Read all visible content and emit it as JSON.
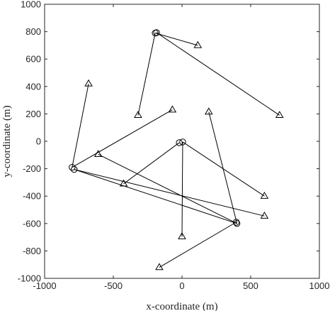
{
  "chart_data": {
    "type": "scatter",
    "xlabel": "x-coordinate (m)",
    "ylabel": "y-coordinate (m)",
    "xlim": [
      -1000,
      1000
    ],
    "ylim": [
      -1000,
      1000
    ],
    "xticks": [
      "-1000",
      "-500",
      "0",
      "500",
      "1000"
    ],
    "yticks": [
      "-1000",
      "-800",
      "-600",
      "-400",
      "-200",
      "0",
      "200",
      "400",
      "600",
      "800",
      "1000"
    ],
    "grid": false,
    "series": [
      {
        "marker": "circle",
        "points": [
          [
            -195,
            790
          ],
          [
            -185,
            793
          ],
          [
            -800,
            -190
          ],
          [
            -785,
            -205
          ],
          [
            -20,
            -10
          ],
          [
            5,
            -5
          ],
          [
            395,
            -590
          ],
          [
            400,
            -600
          ]
        ]
      },
      {
        "marker": "triangle",
        "points": [
          [
            115,
            700
          ],
          [
            -320,
            190
          ],
          [
            710,
            190
          ],
          [
            -680,
            420
          ],
          [
            -70,
            230
          ],
          [
            -610,
            -95
          ],
          [
            -425,
            -310
          ],
          [
            195,
            215
          ],
          [
            600,
            -400
          ],
          [
            600,
            -545
          ],
          [
            0,
            -695
          ],
          [
            -165,
            -920
          ]
        ]
      }
    ],
    "links": [
      [
        [
          -195,
          790
        ],
        [
          115,
          700
        ]
      ],
      [
        [
          -195,
          790
        ],
        [
          -320,
          190
        ]
      ],
      [
        [
          -185,
          793
        ],
        [
          710,
          190
        ]
      ],
      [
        [
          -800,
          -190
        ],
        [
          -680,
          420
        ]
      ],
      [
        [
          -800,
          -190
        ],
        [
          -70,
          230
        ]
      ],
      [
        [
          -785,
          -205
        ],
        [
          400,
          -600
        ]
      ],
      [
        [
          -785,
          -205
        ],
        [
          600,
          -545
        ]
      ],
      [
        [
          -610,
          -95
        ],
        [
          400,
          -600
        ]
      ],
      [
        [
          -20,
          -10
        ],
        [
          -425,
          -310
        ]
      ],
      [
        [
          5,
          -5
        ],
        [
          600,
          -400
        ]
      ],
      [
        [
          5,
          -5
        ],
        [
          0,
          -695
        ]
      ],
      [
        [
          195,
          215
        ],
        [
          400,
          -600
        ]
      ],
      [
        [
          395,
          -590
        ],
        [
          -165,
          -920
        ]
      ]
    ]
  }
}
